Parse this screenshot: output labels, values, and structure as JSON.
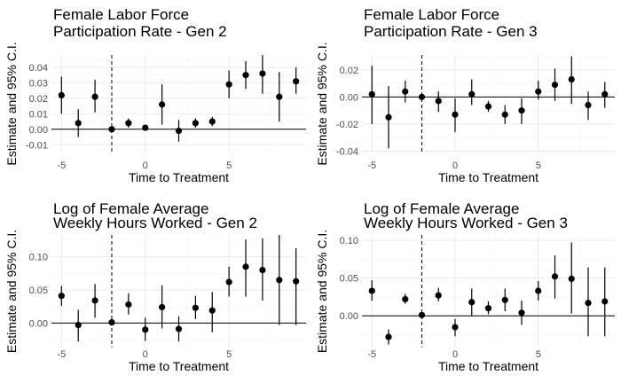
{
  "chart_data": [
    {
      "type": "scatter",
      "title_lines": [
        "Female Labor Force",
        "Participation Rate - Gen 2"
      ],
      "xlabel": "Time to Treatment",
      "ylabel": "Estimate and 95% C.I.",
      "x_ticks": [
        -5,
        0,
        5
      ],
      "y_ticks": [
        -0.01,
        0.0,
        0.01,
        0.02,
        0.03,
        0.04
      ],
      "y_tick_labels": [
        "-0.01",
        "0.00",
        "0.01",
        "0.02",
        "0.03",
        "0.04"
      ],
      "xlim": [
        -5.6,
        9.6
      ],
      "ylim": [
        -0.015,
        0.048
      ],
      "reference_x": -2,
      "reference_y": 0,
      "grid": true,
      "points": [
        {
          "x": -5,
          "y": 0.022,
          "lo": 0.01,
          "hi": 0.034
        },
        {
          "x": -4,
          "y": 0.004,
          "lo": -0.005,
          "hi": 0.013
        },
        {
          "x": -3,
          "y": 0.021,
          "lo": 0.011,
          "hi": 0.032
        },
        {
          "x": -2,
          "y": 0.0,
          "lo": 0.0,
          "hi": 0.0
        },
        {
          "x": -1,
          "y": 0.004,
          "lo": 0.001,
          "hi": 0.007
        },
        {
          "x": 0,
          "y": 0.001,
          "lo": -0.001,
          "hi": 0.003
        },
        {
          "x": 1,
          "y": 0.016,
          "lo": 0.003,
          "hi": 0.029
        },
        {
          "x": 2,
          "y": -0.001,
          "lo": -0.008,
          "hi": 0.006
        },
        {
          "x": 3,
          "y": 0.004,
          "lo": 0.001,
          "hi": 0.007
        },
        {
          "x": 4,
          "y": 0.005,
          "lo": 0.002,
          "hi": 0.008
        },
        {
          "x": 5,
          "y": 0.029,
          "lo": 0.02,
          "hi": 0.038
        },
        {
          "x": 6,
          "y": 0.035,
          "lo": 0.026,
          "hi": 0.044
        },
        {
          "x": 7,
          "y": 0.036,
          "lo": 0.023,
          "hi": 0.048
        },
        {
          "x": 8,
          "y": 0.021,
          "lo": 0.005,
          "hi": 0.037
        },
        {
          "x": 9,
          "y": 0.031,
          "lo": 0.023,
          "hi": 0.04
        }
      ]
    },
    {
      "type": "scatter",
      "title_lines": [
        "Female Labor Force",
        "Participation Rate - Gen 3"
      ],
      "xlabel": "Time to Treatment",
      "ylabel": "Estimate and 95% C.I.",
      "x_ticks": [
        -5,
        0,
        5
      ],
      "y_ticks": [
        -0.04,
        -0.02,
        0.0,
        0.02
      ],
      "y_tick_labels": [
        "-0.04",
        "-0.02",
        "0.00",
        "0.02"
      ],
      "xlim": [
        -5.6,
        9.6
      ],
      "ylim": [
        -0.041,
        0.031
      ],
      "reference_x": -2,
      "reference_y": 0,
      "grid": true,
      "points": [
        {
          "x": -5,
          "y": 0.002,
          "lo": -0.02,
          "hi": 0.023
        },
        {
          "x": -4,
          "y": -0.015,
          "lo": -0.038,
          "hi": 0.008
        },
        {
          "x": -3,
          "y": 0.004,
          "lo": -0.004,
          "hi": 0.012
        },
        {
          "x": -2,
          "y": 0.0,
          "lo": 0.0,
          "hi": 0.0
        },
        {
          "x": -1,
          "y": -0.003,
          "lo": -0.011,
          "hi": 0.004
        },
        {
          "x": 0,
          "y": -0.013,
          "lo": -0.026,
          "hi": -0.001
        },
        {
          "x": 1,
          "y": 0.002,
          "lo": -0.006,
          "hi": 0.013
        },
        {
          "x": 2,
          "y": -0.007,
          "lo": -0.011,
          "hi": -0.003
        },
        {
          "x": 3,
          "y": -0.013,
          "lo": -0.02,
          "hi": -0.006
        },
        {
          "x": 4,
          "y": -0.01,
          "lo": -0.02,
          "hi": -0.001
        },
        {
          "x": 5,
          "y": 0.004,
          "lo": -0.002,
          "hi": 0.012
        },
        {
          "x": 6,
          "y": 0.009,
          "lo": -0.003,
          "hi": 0.021
        },
        {
          "x": 7,
          "y": 0.013,
          "lo": -0.005,
          "hi": 0.03
        },
        {
          "x": 8,
          "y": -0.006,
          "lo": -0.017,
          "hi": 0.004
        },
        {
          "x": 9,
          "y": 0.002,
          "lo": -0.008,
          "hi": 0.011
        }
      ]
    },
    {
      "type": "scatter",
      "title_lines": [
        "Log of Female Average",
        "Weekly Hours Worked - Gen 2"
      ],
      "xlabel": "Time to Treatment",
      "ylabel": "Estimate and 95% C.I.",
      "x_ticks": [
        -5,
        0,
        5
      ],
      "y_ticks": [
        0.0,
        0.05,
        0.1
      ],
      "y_tick_labels": [
        "0.00",
        "0.05",
        "0.10"
      ],
      "xlim": [
        -5.6,
        9.6
      ],
      "ylim": [
        -0.037,
        0.133
      ],
      "reference_x": -2,
      "reference_y": 0,
      "grid": true,
      "points": [
        {
          "x": -5,
          "y": 0.041,
          "lo": 0.026,
          "hi": 0.056
        },
        {
          "x": -4,
          "y": -0.003,
          "lo": -0.028,
          "hi": 0.02
        },
        {
          "x": -3,
          "y": 0.034,
          "lo": 0.008,
          "hi": 0.059
        },
        {
          "x": -2,
          "y": 0.001,
          "lo": 0.001,
          "hi": 0.001
        },
        {
          "x": -1,
          "y": 0.028,
          "lo": 0.013,
          "hi": 0.045
        },
        {
          "x": 0,
          "y": -0.01,
          "lo": -0.027,
          "hi": 0.008
        },
        {
          "x": 1,
          "y": 0.024,
          "lo": -0.008,
          "hi": 0.057
        },
        {
          "x": 2,
          "y": -0.009,
          "lo": -0.028,
          "hi": 0.01
        },
        {
          "x": 3,
          "y": 0.023,
          "lo": 0.006,
          "hi": 0.041
        },
        {
          "x": 4,
          "y": 0.019,
          "lo": -0.014,
          "hi": 0.047
        },
        {
          "x": 5,
          "y": 0.062,
          "lo": 0.04,
          "hi": 0.085
        },
        {
          "x": 6,
          "y": 0.085,
          "lo": 0.04,
          "hi": 0.126
        },
        {
          "x": 7,
          "y": 0.08,
          "lo": 0.034,
          "hi": 0.128
        },
        {
          "x": 8,
          "y": 0.065,
          "lo": -0.003,
          "hi": 0.133
        },
        {
          "x": 9,
          "y": 0.063,
          "lo": -0.003,
          "hi": 0.113
        }
      ]
    },
    {
      "type": "scatter",
      "title_lines": [
        "Log of Female Average",
        "Weekly Hours Worked - Gen 3"
      ],
      "xlabel": "Time to Treatment",
      "ylabel": "Estimate and 95% C.I.",
      "x_ticks": [
        -5,
        0,
        5
      ],
      "y_ticks": [
        0.0,
        0.05,
        0.1
      ],
      "y_tick_labels": [
        "0.00",
        "0.05",
        "0.10"
      ],
      "xlim": [
        -5.6,
        9.6
      ],
      "ylim": [
        -0.042,
        0.107
      ],
      "reference_x": -2,
      "reference_y": 0,
      "grid": true,
      "points": [
        {
          "x": -5,
          "y": 0.033,
          "lo": 0.02,
          "hi": 0.047
        },
        {
          "x": -4,
          "y": -0.028,
          "lo": -0.038,
          "hi": -0.018
        },
        {
          "x": -3,
          "y": 0.022,
          "lo": 0.016,
          "hi": 0.029
        },
        {
          "x": -2,
          "y": 0.001,
          "lo": 0.001,
          "hi": 0.001
        },
        {
          "x": -1,
          "y": 0.027,
          "lo": 0.019,
          "hi": 0.037
        },
        {
          "x": 0,
          "y": -0.015,
          "lo": -0.027,
          "hi": -0.004
        },
        {
          "x": 1,
          "y": 0.018,
          "lo": 0.0,
          "hi": 0.036
        },
        {
          "x": 2,
          "y": 0.01,
          "lo": 0.002,
          "hi": 0.019
        },
        {
          "x": 3,
          "y": 0.021,
          "lo": 0.006,
          "hi": 0.036
        },
        {
          "x": 4,
          "y": 0.004,
          "lo": -0.012,
          "hi": 0.02
        },
        {
          "x": 5,
          "y": 0.033,
          "lo": 0.02,
          "hi": 0.046
        },
        {
          "x": 6,
          "y": 0.052,
          "lo": 0.023,
          "hi": 0.08
        },
        {
          "x": 7,
          "y": 0.049,
          "lo": 0.003,
          "hi": 0.097
        },
        {
          "x": 8,
          "y": 0.017,
          "lo": -0.027,
          "hi": 0.064
        },
        {
          "x": 9,
          "y": 0.019,
          "lo": -0.027,
          "hi": 0.064
        }
      ]
    }
  ]
}
